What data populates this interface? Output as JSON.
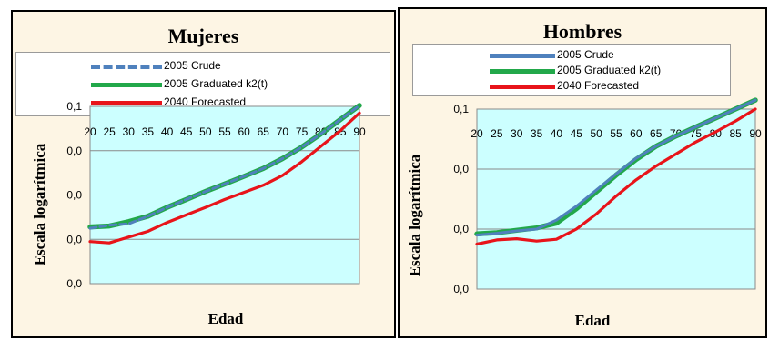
{
  "colors": {
    "crude": "#4f81bd",
    "graduated": "#22a84a",
    "forecast": "#e8141a",
    "plot_bg": "#ccffff",
    "panel_bg": "#fdf5e4"
  },
  "legend": {
    "crude": "2005 Crude",
    "graduated": "2005 Graduated k2(t)",
    "forecast": "2040 Forecasted"
  },
  "chart_data": [
    {
      "type": "line",
      "title": "Mujeres",
      "xlabel": "Edad",
      "ylabel": "Escala logarítmica",
      "x_ticks": [
        20,
        25,
        30,
        35,
        40,
        45,
        50,
        55,
        60,
        65,
        70,
        75,
        80,
        85,
        90
      ],
      "y_tick_labels": [
        "0,1",
        "0,0",
        "0,0",
        "0,0",
        "0,0"
      ],
      "xlim": [
        20,
        90
      ],
      "ylim": [
        -4,
        0
      ],
      "log_scale": true,
      "grid": "horizontal",
      "legend_position": "top",
      "series": [
        {
          "name": "2005 Crude",
          "key": "crude",
          "style": "dashed",
          "x": [
            20,
            25,
            30,
            35,
            40,
            45,
            50,
            55,
            60,
            65,
            70,
            75,
            80,
            85,
            90
          ],
          "y": [
            -2.75,
            -2.68,
            -2.65,
            -2.48,
            -2.28,
            -2.1,
            -1.92,
            -1.75,
            -1.58,
            -1.4,
            -1.18,
            -0.92,
            -0.62,
            -0.3,
            0.02
          ]
        },
        {
          "name": "2005 Graduated k2(t)",
          "key": "graduated",
          "style": "solid",
          "x": [
            20,
            25,
            30,
            35,
            40,
            45,
            50,
            55,
            60,
            65,
            70,
            75,
            80,
            85,
            90
          ],
          "y": [
            -2.72,
            -2.7,
            -2.6,
            -2.48,
            -2.28,
            -2.1,
            -1.92,
            -1.75,
            -1.58,
            -1.4,
            -1.18,
            -0.92,
            -0.62,
            -0.3,
            0.02
          ]
        },
        {
          "name": "2040 Forecasted",
          "key": "forecast",
          "style": "solid",
          "x": [
            20,
            25,
            30,
            35,
            40,
            45,
            50,
            55,
            60,
            65,
            70,
            75,
            80,
            85,
            90
          ],
          "y": [
            -3.05,
            -3.08,
            -2.95,
            -2.82,
            -2.62,
            -2.45,
            -2.28,
            -2.1,
            -1.94,
            -1.78,
            -1.56,
            -1.25,
            -0.9,
            -0.55,
            -0.15
          ]
        }
      ]
    },
    {
      "type": "line",
      "title": "Hombres",
      "xlabel": "Edad",
      "ylabel": "Escala logarítmica",
      "x_ticks": [
        20,
        25,
        30,
        35,
        40,
        45,
        50,
        55,
        60,
        65,
        70,
        75,
        80,
        85,
        90
      ],
      "y_tick_labels": [
        "0,1",
        "0,0",
        "0,0",
        "0,0"
      ],
      "xlim": [
        20,
        90
      ],
      "ylim": [
        -3,
        0
      ],
      "log_scale": true,
      "grid": "horizontal",
      "legend_position": "top",
      "series": [
        {
          "name": "2005 Crude",
          "key": "crude",
          "style": "solid",
          "x": [
            20,
            25,
            30,
            35,
            40,
            45,
            50,
            55,
            60,
            65,
            70,
            75,
            80,
            85,
            90
          ],
          "y": [
            -2.1,
            -2.07,
            -2.03,
            -2.0,
            -1.85,
            -1.62,
            -1.35,
            -1.08,
            -0.82,
            -0.62,
            -0.45,
            -0.3,
            -0.15,
            0.0,
            0.15
          ]
        },
        {
          "name": "2005 Graduated k2(t)",
          "key": "graduated",
          "style": "solid",
          "x": [
            20,
            25,
            30,
            35,
            40,
            45,
            50,
            55,
            60,
            65,
            70,
            75,
            80,
            85,
            90
          ],
          "y": [
            -2.08,
            -2.06,
            -2.02,
            -1.98,
            -1.9,
            -1.66,
            -1.38,
            -1.1,
            -0.84,
            -0.62,
            -0.45,
            -0.3,
            -0.15,
            0.0,
            0.15
          ]
        },
        {
          "name": "2040 Forecasted",
          "key": "forecast",
          "style": "solid",
          "x": [
            20,
            25,
            30,
            35,
            40,
            45,
            50,
            55,
            60,
            65,
            70,
            75,
            80,
            85,
            90
          ],
          "y": [
            -2.25,
            -2.18,
            -2.16,
            -2.2,
            -2.17,
            -2.0,
            -1.75,
            -1.45,
            -1.18,
            -0.95,
            -0.75,
            -0.55,
            -0.38,
            -0.2,
            0.0
          ]
        }
      ]
    }
  ]
}
